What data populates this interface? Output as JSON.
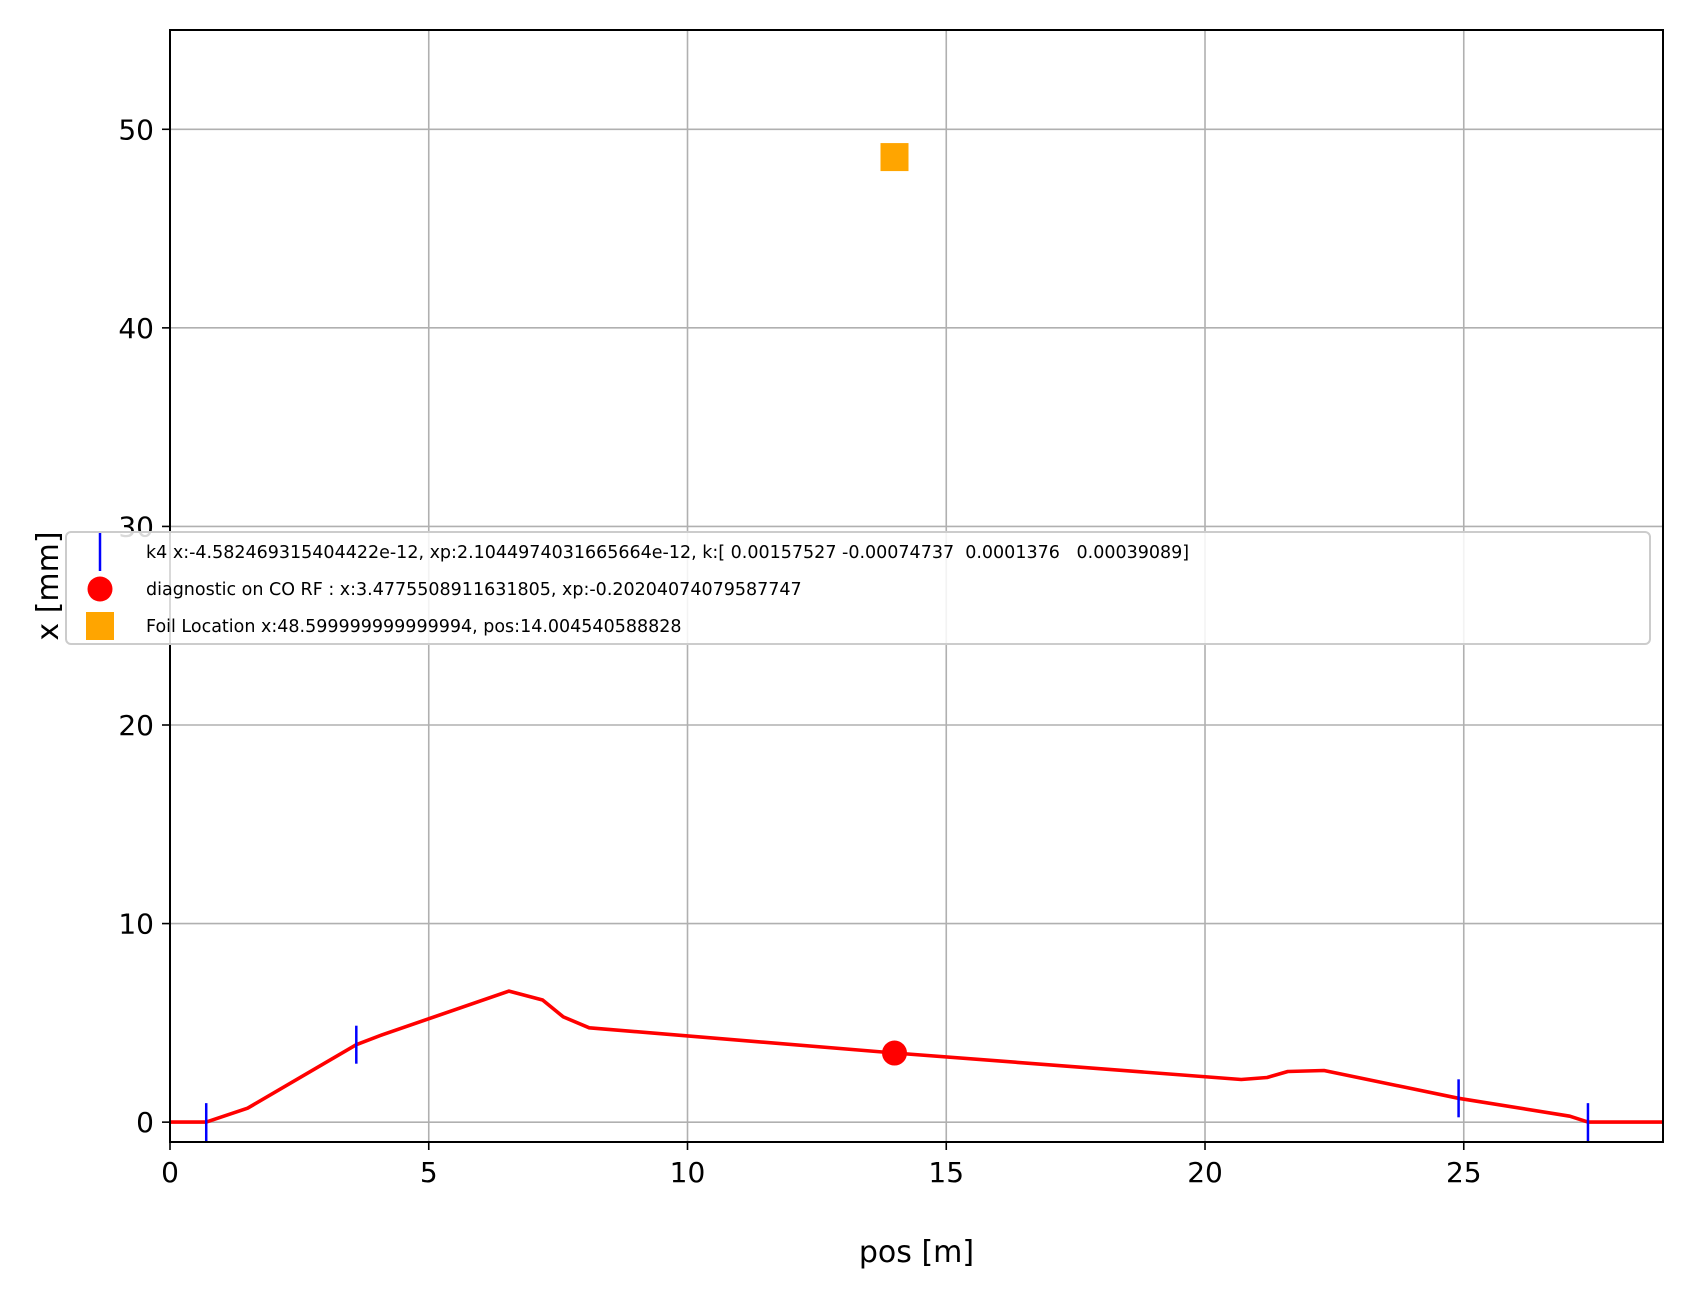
{
  "chart_data": {
    "type": "line",
    "title": "",
    "xlabel": "pos [m]",
    "ylabel": "x [mm]",
    "xlim": [
      0,
      28.85
    ],
    "ylim": [
      -1,
      55
    ],
    "grid": true,
    "legend_placement": "center-left",
    "xticks": [
      0,
      5,
      10,
      15,
      20,
      25
    ],
    "yticks": [
      0,
      10,
      20,
      30,
      40,
      50
    ],
    "colors": {
      "orbit": "#ff0000",
      "kicker": "#0000ff",
      "diagnostic": "#ff0000",
      "foil": "#ffa500",
      "grid": "#b0b0b0"
    },
    "series": [
      {
        "marker": "line",
        "x": [
          0,
          0.7,
          1.5,
          3.6,
          4.1,
          6.55,
          7.2,
          7.6,
          8.1,
          14.0,
          20.7,
          21.2,
          21.6,
          22.3,
          24.9,
          27.05,
          27.4,
          28.85
        ],
        "y": [
          0,
          0,
          0.7,
          3.9,
          4.4,
          6.6,
          6.15,
          5.3,
          4.75,
          3.48,
          2.15,
          2.25,
          2.55,
          2.6,
          1.2,
          0.3,
          0,
          0
        ]
      },
      {
        "name": "k4 x:-4.582469315404422e-12, xp:2.1044974031665664e-12, k:[ 0.00157527 -0.00074737  0.0001376   0.00039089]",
        "marker": "vline",
        "x": [
          0.7,
          3.6,
          24.9,
          27.4
        ],
        "y": [
          0,
          3.9,
          1.2,
          0
        ]
      },
      {
        "name": "diagnostic on CO RF : x:3.4775508911631805, xp:-0.20204074079587747",
        "marker": "circle",
        "x": [
          14.0
        ],
        "y": [
          3.48
        ]
      },
      {
        "name": "Foil Location x:48.599999999999994, pos:14.004540588828",
        "marker": "square",
        "x": [
          14.0
        ],
        "y": [
          48.6
        ]
      }
    ]
  }
}
